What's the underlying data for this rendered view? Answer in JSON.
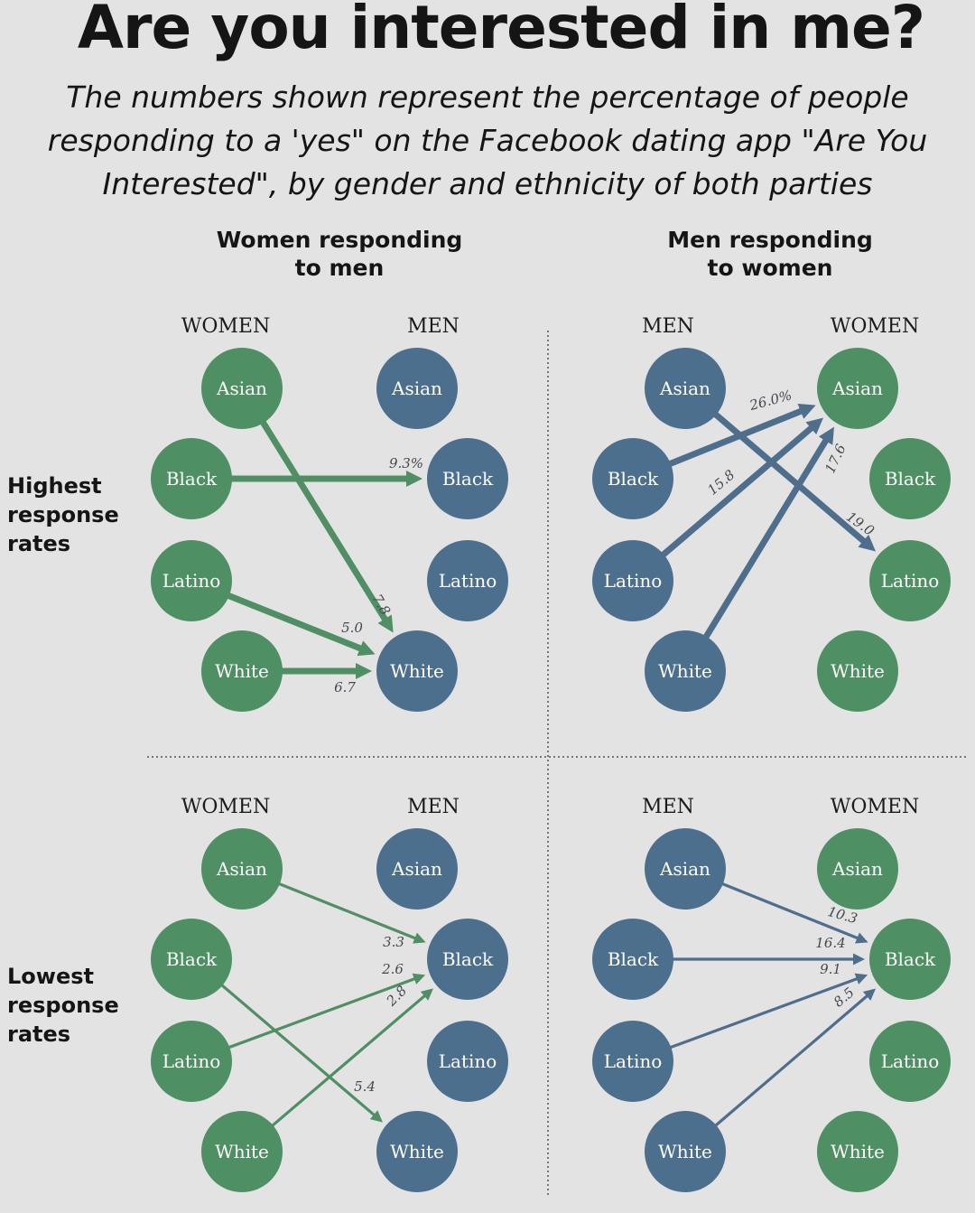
{
  "title": "Are you interested in me?",
  "subtitle": "The numbers shown represent the percentage of people responding to a 'yes\" on the Facebook dating app \"Are You Interested\", by gender and ethnicity of both parties",
  "panel_headers": {
    "left": [
      "Women responding",
      "to men"
    ],
    "right": [
      "Men responding",
      "to women"
    ]
  },
  "row_labels": {
    "highest": [
      "Highest",
      "response",
      "rates"
    ],
    "lowest": [
      "Lowest",
      "response",
      "rates"
    ]
  },
  "colors": {
    "women": "#4e8f63",
    "men": "#4d6f8e",
    "women_arrow": "#4f8f63",
    "men_arrow": "#4e6e8c",
    "background": "#e3e3e3"
  },
  "ethnicities": [
    "Asian",
    "Black",
    "Latino",
    "White"
  ],
  "quadrants": [
    {
      "id": "women-high",
      "left_heading": "WOMEN",
      "right_heading": "MEN",
      "left_gender": "women",
      "right_gender": "men",
      "edges": [
        {
          "from": "Black",
          "to": "Black",
          "value": "9.3%"
        },
        {
          "from": "Asian",
          "to": "White",
          "value": "7.8"
        },
        {
          "from": "Latino",
          "to": "White",
          "value": "5.0"
        },
        {
          "from": "White",
          "to": "White",
          "value": "6.7"
        }
      ]
    },
    {
      "id": "men-high",
      "left_heading": "MEN",
      "right_heading": "WOMEN",
      "left_gender": "men",
      "right_gender": "women",
      "edges": [
        {
          "from": "Black",
          "to": "Asian",
          "value": "26.0%"
        },
        {
          "from": "Latino",
          "to": "Asian",
          "value": "15.8"
        },
        {
          "from": "White",
          "to": "Asian",
          "value": "17.6"
        },
        {
          "from": "Asian",
          "to": "Latino",
          "value": "19.0"
        }
      ]
    },
    {
      "id": "women-low",
      "left_heading": "WOMEN",
      "right_heading": "MEN",
      "left_gender": "women",
      "right_gender": "men",
      "edges": [
        {
          "from": "Asian",
          "to": "Black",
          "value": "3.3"
        },
        {
          "from": "Latino",
          "to": "Black",
          "value": "2.6"
        },
        {
          "from": "White",
          "to": "Black",
          "value": "2.8"
        },
        {
          "from": "Black",
          "to": "White",
          "value": "5.4"
        }
      ]
    },
    {
      "id": "men-low",
      "left_heading": "MEN",
      "right_heading": "WOMEN",
      "left_gender": "men",
      "right_gender": "women",
      "edges": [
        {
          "from": "Asian",
          "to": "Black",
          "value": "10.3"
        },
        {
          "from": "Black",
          "to": "Black",
          "value": "16.4"
        },
        {
          "from": "Latino",
          "to": "Black",
          "value": "9.1"
        },
        {
          "from": "White",
          "to": "Black",
          "value": "8.5"
        }
      ]
    }
  ]
}
